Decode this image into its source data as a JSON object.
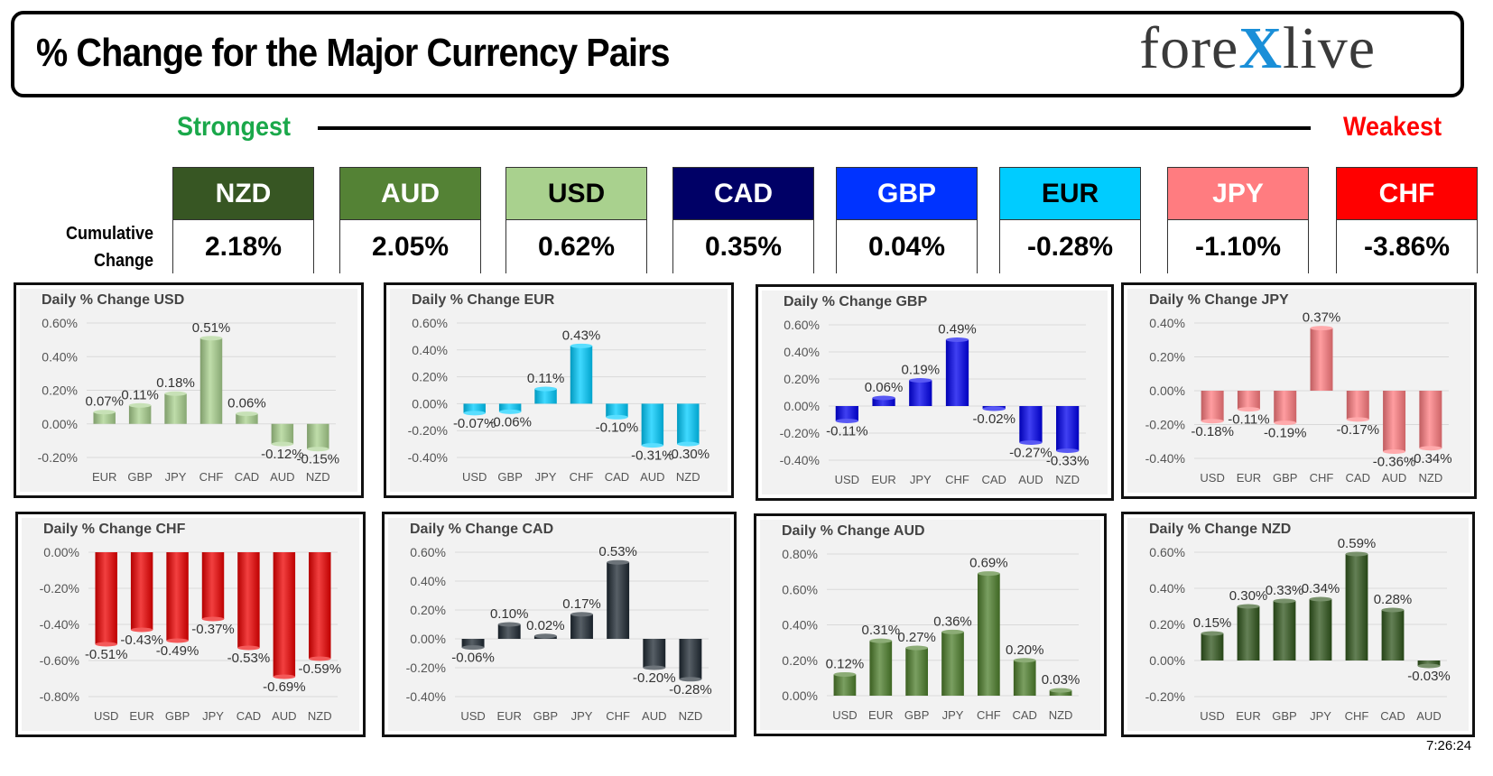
{
  "header": {
    "title": "% Change for the Major Currency Pairs",
    "logo_pre": "fore",
    "logo_x": "X",
    "logo_post": "live"
  },
  "ranking": {
    "strongest_label": "Strongest",
    "weakest_label": "Weakest",
    "cumulative_label_line1": "Cumulative",
    "cumulative_label_line2": "Change",
    "currencies": [
      {
        "code": "NZD",
        "pct": "2.18%",
        "color": "#375623",
        "text_color": "#ffffff"
      },
      {
        "code": "AUD",
        "pct": "2.05%",
        "color": "#548235",
        "text_color": "#ffffff"
      },
      {
        "code": "USD",
        "pct": "0.62%",
        "color": "#a9d18e",
        "text_color": "#000000"
      },
      {
        "code": "CAD",
        "pct": "0.35%",
        "color": "#000066",
        "text_color": "#ffffff"
      },
      {
        "code": "GBP",
        "pct": "0.04%",
        "color": "#0033ff",
        "text_color": "#ffffff"
      },
      {
        "code": "EUR",
        "pct": "-0.28%",
        "color": "#00ccff",
        "text_color": "#000000"
      },
      {
        "code": "JPY",
        "pct": "-1.10%",
        "color": "#ff7c80",
        "text_color": "#ffffff"
      },
      {
        "code": "CHF",
        "pct": "-3.86%",
        "color": "#ff0000",
        "text_color": "#ffffff"
      }
    ]
  },
  "timestamp": "7:26:24",
  "chart_data": [
    {
      "type": "bar",
      "title": "Daily % Change USD",
      "categories": [
        "EUR",
        "GBP",
        "JPY",
        "CHF",
        "CAD",
        "AUD",
        "NZD"
      ],
      "values": [
        0.07,
        0.11,
        0.18,
        0.51,
        0.06,
        -0.12,
        -0.15
      ],
      "labels": [
        "0.07%",
        "0.11%",
        "0.18%",
        "0.51%",
        "0.06%",
        "-0.12%",
        "-0.15%"
      ],
      "yticks": [
        "0.60%",
        "0.40%",
        "0.20%",
        "0.00%",
        "-0.20%"
      ],
      "ylim": [
        -0.2,
        0.6
      ],
      "color": "#a9d18e"
    },
    {
      "type": "bar",
      "title": "Daily % Change EUR",
      "categories": [
        "USD",
        "GBP",
        "JPY",
        "CHF",
        "CAD",
        "AUD",
        "NZD"
      ],
      "values": [
        -0.07,
        -0.06,
        0.11,
        0.43,
        -0.1,
        -0.31,
        -0.3
      ],
      "labels": [
        "-0.07%",
        "-0.06%",
        "0.11%",
        "0.43%",
        "-0.10%",
        "-0.31%",
        "-0.30%"
      ],
      "yticks": [
        "0.60%",
        "0.40%",
        "0.20%",
        "0.00%",
        "-0.20%",
        "-0.40%"
      ],
      "ylim": [
        -0.4,
        0.6
      ],
      "color": "#00ccff"
    },
    {
      "type": "bar",
      "title": "Daily % Change GBP",
      "categories": [
        "USD",
        "EUR",
        "JPY",
        "CHF",
        "CAD",
        "AUD",
        "NZD"
      ],
      "values": [
        -0.11,
        0.06,
        0.19,
        0.49,
        -0.02,
        -0.27,
        -0.33
      ],
      "labels": [
        "-0.11%",
        "0.06%",
        "0.19%",
        "0.49%",
        "-0.02%",
        "-0.27%",
        "-0.33%"
      ],
      "yticks": [
        "0.60%",
        "0.40%",
        "0.20%",
        "0.00%",
        "-0.20%",
        "-0.40%"
      ],
      "ylim": [
        -0.4,
        0.6
      ],
      "color": "#0000ee"
    },
    {
      "type": "bar",
      "title": "Daily % Change JPY",
      "categories": [
        "USD",
        "EUR",
        "GBP",
        "CHF",
        "CAD",
        "AUD",
        "NZD"
      ],
      "values": [
        -0.18,
        -0.11,
        -0.19,
        0.37,
        -0.17,
        -0.36,
        -0.34
      ],
      "labels": [
        "-0.18%",
        "-0.11%",
        "-0.19%",
        "0.37%",
        "-0.17%",
        "-0.36%",
        "-0.34%"
      ],
      "yticks": [
        "0.40%",
        "0.20%",
        "0.00%",
        "-0.20%",
        "-0.40%"
      ],
      "ylim": [
        -0.4,
        0.4
      ],
      "color": "#ff7c80"
    },
    {
      "type": "bar",
      "title": "Daily % Change CHF",
      "categories": [
        "USD",
        "EUR",
        "GBP",
        "JPY",
        "CAD",
        "AUD",
        "NZD"
      ],
      "values": [
        -0.51,
        -0.43,
        -0.49,
        -0.37,
        -0.53,
        -0.69,
        -0.59
      ],
      "labels": [
        "-0.51%",
        "-0.43%",
        "-0.49%",
        "-0.37%",
        "-0.53%",
        "-0.69%",
        "-0.59%"
      ],
      "yticks": [
        "0.00%",
        "-0.20%",
        "-0.40%",
        "-0.60%",
        "-0.80%"
      ],
      "ylim": [
        -0.8,
        0.0
      ],
      "color": "#ee0000"
    },
    {
      "type": "bar",
      "title": "Daily % Change CAD",
      "categories": [
        "USD",
        "EUR",
        "GBP",
        "JPY",
        "CHF",
        "AUD",
        "NZD"
      ],
      "values": [
        -0.06,
        0.1,
        0.02,
        0.17,
        0.53,
        -0.2,
        -0.28
      ],
      "labels": [
        "-0.06%",
        "0.10%",
        "0.02%",
        "0.17%",
        "0.53%",
        "-0.20%",
        "-0.28%"
      ],
      "yticks": [
        "0.60%",
        "0.40%",
        "0.20%",
        "0.00%",
        "-0.20%",
        "-0.40%"
      ],
      "ylim": [
        -0.4,
        0.6
      ],
      "color": "#1f2933"
    },
    {
      "type": "bar",
      "title": "Daily % Change AUD",
      "categories": [
        "USD",
        "EUR",
        "GBP",
        "JPY",
        "CHF",
        "CAD",
        "NZD"
      ],
      "values": [
        0.12,
        0.31,
        0.27,
        0.36,
        0.69,
        0.2,
        0.03
      ],
      "labels": [
        "0.12%",
        "0.31%",
        "0.27%",
        "0.36%",
        "0.69%",
        "0.20%",
        "0.03%"
      ],
      "yticks": [
        "0.80%",
        "0.60%",
        "0.40%",
        "0.20%",
        "0.00%"
      ],
      "ylim": [
        0.0,
        0.8
      ],
      "color": "#4e7f2c"
    },
    {
      "type": "bar",
      "title": "Daily % Change NZD",
      "categories": [
        "USD",
        "EUR",
        "GBP",
        "JPY",
        "CHF",
        "CAD",
        "AUD"
      ],
      "values": [
        0.15,
        0.3,
        0.33,
        0.34,
        0.59,
        0.28,
        -0.03
      ],
      "labels": [
        "0.15%",
        "0.30%",
        "0.33%",
        "0.34%",
        "0.59%",
        "0.28%",
        "-0.03%"
      ],
      "yticks": [
        "0.60%",
        "0.40%",
        "0.20%",
        "0.00%",
        "-0.20%"
      ],
      "ylim": [
        -0.2,
        0.6
      ],
      "color": "#30561c"
    }
  ]
}
